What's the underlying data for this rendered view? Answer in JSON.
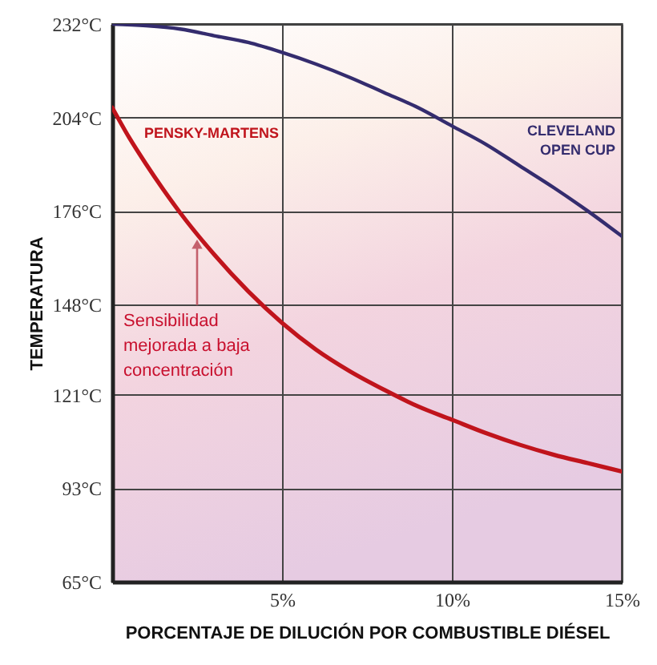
{
  "chart_data": {
    "type": "line",
    "xlabel": "PORCENTAJE DE DILUCIÓN POR COMBUSTIBLE DIÉSEL",
    "ylabel": "TEMPERATURA",
    "xlim": [
      0,
      15
    ],
    "xticks": [
      {
        "value": 5,
        "label": "5%"
      },
      {
        "value": 10,
        "label": "10%"
      },
      {
        "value": 15,
        "label": "15%"
      }
    ],
    "ylim": [
      65,
      232
    ],
    "yticks": [
      {
        "value": 65,
        "label": "65°C"
      },
      {
        "value": 93,
        "label": "93°C"
      },
      {
        "value": 121,
        "label": "121°C"
      },
      {
        "value": 148,
        "label": "148°C"
      },
      {
        "value": 176,
        "label": "176°C"
      },
      {
        "value": 204,
        "label": "204°C"
      },
      {
        "value": 232,
        "label": "232°C"
      }
    ],
    "grid": true,
    "annotations": [
      {
        "text": "Sensibilidad mejorada a baja concentración",
        "x": 2.5,
        "y": 168
      }
    ],
    "series": [
      {
        "name": "PENSKY-MARTENS",
        "color": "#c0141c",
        "x": [
          0,
          0.5,
          1,
          1.5,
          2,
          3,
          4,
          5,
          6,
          7,
          8,
          9,
          10,
          11,
          12,
          13,
          14,
          15
        ],
        "values": [
          207,
          198,
          190,
          182.5,
          175.5,
          163,
          152,
          142.5,
          134.5,
          128,
          122.5,
          117.5,
          113.5,
          109.5,
          106,
          103,
          100.5,
          98
        ]
      },
      {
        "name": "CLEVELAND OPEN CUP",
        "color": "#342c6e",
        "x": [
          0,
          1,
          2,
          3,
          4,
          5,
          6,
          7,
          8,
          9,
          10,
          11,
          12,
          13,
          14,
          15
        ],
        "values": [
          232,
          231.5,
          230.5,
          228.5,
          226.5,
          223.5,
          220,
          216,
          211.5,
          207,
          201.5,
          196,
          189.5,
          183,
          176,
          168.5
        ]
      }
    ]
  }
}
